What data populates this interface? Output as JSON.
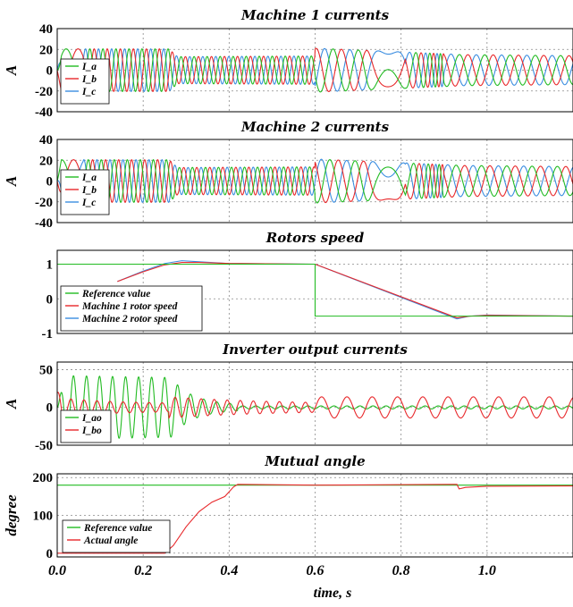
{
  "chart_data": [
    {
      "type": "line",
      "title": "Machine 1 currents",
      "ylabel": "A",
      "xlim": [
        0,
        1.2
      ],
      "ylim": [
        -40,
        40
      ],
      "yticks": [
        "40",
        "20",
        "0",
        "-20",
        "-40"
      ],
      "yticks_values": [
        40,
        20,
        0,
        -20,
        -40
      ],
      "legend": "left",
      "grid": true,
      "series": [
        {
          "name": "I_a",
          "color": "#22bb22",
          "phase": 0
        },
        {
          "name": "I_b",
          "color": "#e8282b",
          "phase": -2.0944
        },
        {
          "name": "I_c",
          "color": "#3a8de0",
          "phase": 2.0944
        }
      ],
      "envelope": {
        "segments": [
          {
            "t": 0.0,
            "amp": 21,
            "freq": 18
          },
          {
            "t": 0.06,
            "amp": 21,
            "freq": 40
          },
          {
            "t": 0.26,
            "amp": 20,
            "freq": 52
          },
          {
            "t": 0.28,
            "amp": 12,
            "freq": 52
          },
          {
            "t": 0.6,
            "amp": 14,
            "freq": 52
          },
          {
            "t": 0.61,
            "amp": 21,
            "freq": 22
          },
          {
            "t": 0.93,
            "amp": 15,
            "freq": 22
          },
          {
            "t": 1.2,
            "amp": 14,
            "freq": 22
          }
        ]
      }
    },
    {
      "type": "line",
      "title": "Machine 2  currents",
      "ylabel": "A",
      "xlim": [
        0,
        1.2
      ],
      "ylim": [
        -40,
        40
      ],
      "yticks": [
        "40",
        "20",
        "0",
        "-20",
        "-40"
      ],
      "yticks_values": [
        40,
        20,
        0,
        -20,
        -40
      ],
      "legend": "left",
      "grid": true,
      "series": [
        {
          "name": "I_a",
          "color": "#22bb22",
          "phase": 0.4
        },
        {
          "name": "I_b",
          "color": "#e8282b",
          "phase": -1.6944
        },
        {
          "name": "I_c",
          "color": "#3a8de0",
          "phase": 2.4944
        }
      ]
    },
    {
      "type": "line",
      "title": "Rotors speed",
      "xlim": [
        0,
        1.2
      ],
      "ylim": [
        -1,
        1.4
      ],
      "yticks": [
        "1",
        "0",
        "-1"
      ],
      "yticks_values": [
        1,
        0,
        -1
      ],
      "legend": "left",
      "grid": true,
      "series": [
        {
          "name": "Reference value",
          "color": "#22bb22",
          "x": [
            0,
            0.6,
            0.6,
            1.2
          ],
          "y": [
            1,
            1,
            -0.5,
            -0.5
          ]
        },
        {
          "name": "Machine 1 rotor speed",
          "color": "#e8282b",
          "x": [
            0.14,
            0.2,
            0.25,
            0.29,
            0.33,
            0.4,
            0.6,
            0.6,
            0.93,
            0.96,
            1.0,
            1.2
          ],
          "y": [
            0.5,
            0.78,
            0.98,
            1.05,
            1.05,
            1.02,
            1.0,
            1.0,
            -0.55,
            -0.5,
            -0.48,
            -0.5
          ]
        },
        {
          "name": "Machine 2 rotor speed",
          "color": "#3a8de0",
          "x": [
            0.14,
            0.2,
            0.25,
            0.29,
            0.33,
            0.4,
            0.6,
            0.6,
            0.93,
            0.96,
            1.0,
            1.2
          ],
          "y": [
            0.5,
            0.8,
            1.02,
            1.1,
            1.07,
            1.02,
            1.0,
            1.0,
            -0.58,
            -0.5,
            -0.47,
            -0.5
          ]
        }
      ]
    },
    {
      "type": "line",
      "title": "Inverter output currents",
      "ylabel": "A",
      "xlim": [
        0,
        1.2
      ],
      "ylim": [
        -50,
        60
      ],
      "yticks": [
        "50",
        "0",
        "-50"
      ],
      "yticks_values": [
        50,
        0,
        -50
      ],
      "legend": "left",
      "grid": true,
      "series": [
        {
          "name": "I_ao",
          "color": "#22bb22"
        },
        {
          "name": "I_bo",
          "color": "#e8282b"
        }
      ]
    },
    {
      "type": "line",
      "title": "Mutual angle",
      "ylabel": "degree",
      "xlabel": "time, s",
      "xlim": [
        0,
        1.2
      ],
      "ylim": [
        -10,
        210
      ],
      "yticks": [
        "200",
        "100",
        "0"
      ],
      "yticks_values": [
        200,
        100,
        0
      ],
      "xticks": [
        "0.0",
        "0.2",
        "0.4",
        "0.6",
        "0.8",
        "1.0"
      ],
      "xticks_values": [
        0,
        0.2,
        0.4,
        0.6,
        0.8,
        1.0
      ],
      "legend": "bottom-left",
      "grid": true,
      "series": [
        {
          "name": "Reference value",
          "color": "#22bb22",
          "x": [
            0,
            1.2
          ],
          "y": [
            180,
            180
          ]
        },
        {
          "name": "Actual angle",
          "color": "#e8282b",
          "x": [
            0,
            0.25,
            0.27,
            0.3,
            0.33,
            0.36,
            0.39,
            0.41,
            0.42,
            0.6,
            0.93,
            0.935,
            0.95,
            1.0,
            1.2
          ],
          "y": [
            0,
            0,
            20,
            70,
            110,
            135,
            150,
            175,
            182,
            180,
            182,
            170,
            174,
            177,
            178
          ]
        }
      ]
    }
  ]
}
